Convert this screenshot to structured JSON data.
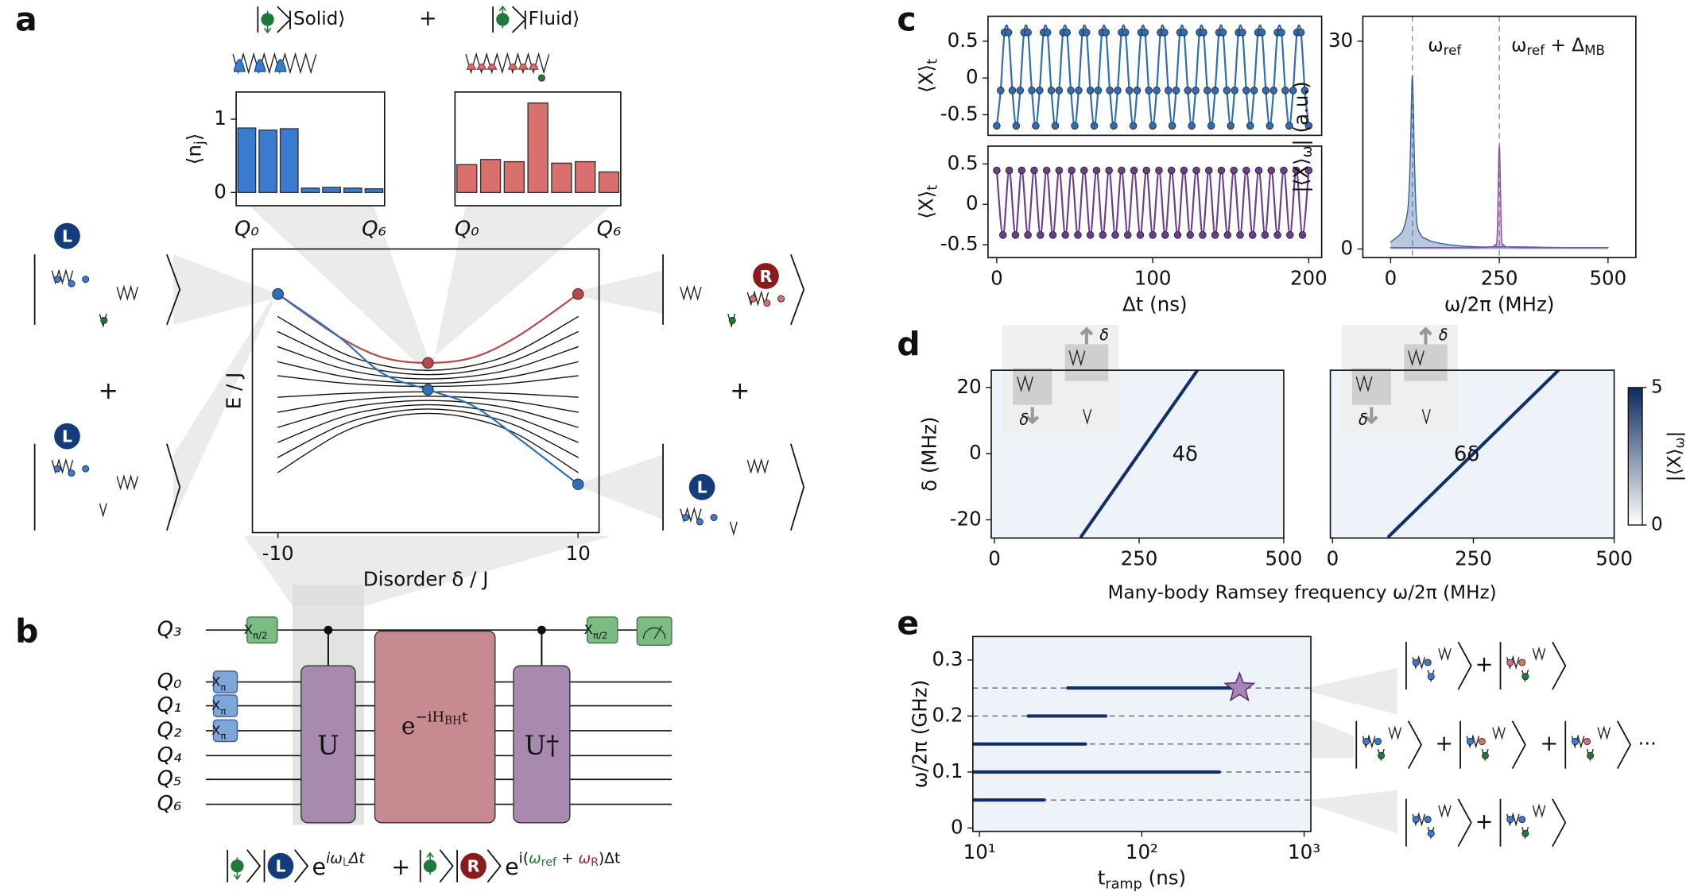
{
  "panels": {
    "a": "a",
    "b": "b",
    "c": "c",
    "d": "d",
    "e": "e"
  },
  "top": {
    "solid": "|Solid⟩",
    "fluid": "|Fluid⟩",
    "plus": "+"
  },
  "kets": {
    "L": "L",
    "R": "R",
    "plus": "+",
    "dots": "···"
  },
  "d_insets": {
    "delta": "δ"
  },
  "d_xlabel": "Many-body Ramsey frequency ω/2π (MHz)",
  "circuit": {
    "qubits": [
      "Q₃",
      "Q₀",
      "Q₁",
      "Q₂",
      "Q₄",
      "Q₅",
      "Q₆"
    ],
    "x_half": [
      "X",
      "π/2"
    ],
    "x_pi": [
      "X",
      "π"
    ],
    "u": "U",
    "evo": [
      "e",
      "−iH",
      "BH",
      "t"
    ],
    "u_dag": "U†",
    "formula": [
      "e",
      "iω",
      "L",
      "Δt",
      "+",
      "e",
      "i(",
      "ω",
      "ref",
      " + ",
      "ω",
      "R",
      ")Δt"
    ]
  },
  "chart_data": [
    {
      "type": "bar",
      "categories": [
        "Q₀",
        null,
        null,
        null,
        null,
        null,
        "Q₆"
      ],
      "values": [
        0.88,
        0.85,
        0.87,
        0.06,
        0.07,
        0.06,
        0.05
      ],
      "color": "#3a7bd0",
      "ylim": [
        -0.18,
        1.37
      ],
      "yticks": [
        0,
        1
      ],
      "ylabel": [
        "⟨n",
        "j",
        "⟩"
      ]
    },
    {
      "type": "bar",
      "categories": [
        "Q₀",
        null,
        null,
        null,
        null,
        null,
        "Q₆"
      ],
      "values": [
        0.38,
        0.45,
        0.42,
        1.22,
        0.4,
        0.42,
        0.28
      ],
      "color": "#d9706e",
      "ylim": [
        -0.18,
        1.37
      ]
    },
    {
      "type": "line",
      "x": [
        -10,
        -6,
        -3,
        0,
        3,
        6,
        10
      ],
      "xlim": [
        -11.7,
        11.4
      ],
      "xticks": [
        -10,
        10
      ],
      "ylim": [
        -1.33,
        1.31
      ],
      "xlabel": "Disorder δ / J",
      "ylabel": "E / J",
      "series": [
        {
          "color": "#111111",
          "values": [
            0.68,
            0.36,
            0.225,
            0.18,
            0.225,
            0.36,
            0.68
          ]
        },
        {
          "color": "#111111",
          "values": [
            0.54,
            0.284,
            0.176,
            0.14,
            0.176,
            0.284,
            0.54
          ]
        },
        {
          "color": "#111111",
          "values": [
            0.4,
            0.208,
            0.127,
            0.1,
            0.127,
            0.208,
            0.4
          ]
        },
        {
          "color": "#111111",
          "values": [
            0.26,
            0.132,
            0.078,
            0.06,
            0.078,
            0.132,
            0.26
          ]
        },
        {
          "color": "#111111",
          "values": [
            0.13,
            0.066,
            0.039,
            0.03,
            0.039,
            0.066,
            0.13
          ]
        },
        {
          "color": "#111111",
          "values": [
            -0.07,
            -0.038,
            -0.025,
            -0.02,
            -0.025,
            -0.038,
            -0.07
          ]
        },
        {
          "color": "#111111",
          "values": [
            -0.21,
            -0.114,
            -0.074,
            -0.06,
            -0.074,
            -0.114,
            -0.21
          ]
        },
        {
          "color": "#111111",
          "values": [
            -0.35,
            -0.19,
            -0.123,
            -0.1,
            -0.123,
            -0.19,
            -0.35
          ]
        },
        {
          "color": "#111111",
          "values": [
            -0.49,
            -0.266,
            -0.172,
            -0.14,
            -0.172,
            -0.266,
            -0.49
          ]
        },
        {
          "color": "#111111",
          "values": [
            -0.63,
            -0.342,
            -0.221,
            -0.18,
            -0.221,
            -0.342,
            -0.63
          ]
        },
        {
          "color": "#111111",
          "values": [
            -0.77,
            -0.418,
            -0.27,
            -0.22,
            -0.27,
            -0.418,
            -0.77
          ]
        },
        {
          "color": "#b54a4a",
          "markers": true,
          "values": [
            0.89,
            0.5,
            0.3,
            0.25,
            0.3,
            0.5,
            0.89
          ]
        },
        {
          "color": "#2f6fb5",
          "markers": true,
          "values": [
            0.89,
            0.5,
            0.15,
            0,
            -0.15,
            -0.45,
            -0.88
          ]
        }
      ]
    },
    {
      "type": "line",
      "x": [
        0,
        2.5,
        5,
        7.5,
        10,
        12.5,
        15,
        17.5,
        20,
        22.5,
        25,
        27.5,
        30,
        32.5,
        35,
        37.5,
        40,
        42.5,
        45,
        47.5,
        50,
        52.5,
        55,
        57.5,
        60,
        62.5,
        65,
        67.5,
        70,
        72.5,
        75,
        77.5,
        80,
        82.5,
        85,
        87.5,
        90,
        92.5,
        95,
        97.5,
        100,
        102.5,
        105,
        107.5,
        110,
        112.5,
        115,
        117.5,
        120,
        122.5,
        125,
        127.5,
        130,
        132.5,
        135,
        137.5,
        140,
        142.5,
        145,
        147.5,
        150,
        152.5,
        155,
        157.5,
        160,
        162.5,
        165,
        167.5,
        170,
        172.5,
        175,
        177.5,
        180,
        182.5,
        185,
        187.5,
        190,
        192.5,
        195,
        197.5,
        200
      ],
      "xlim": [
        -5.6,
        208.3
      ],
      "ylim": [
        -0.78,
        0.84
      ],
      "yticks": [
        -0.5,
        0,
        0.5
      ],
      "ylabel": [
        "⟨X⟩",
        "t"
      ],
      "series": [
        {
          "color": "#2e6db4",
          "markers": true,
          "values": [
            -0.65,
            -0.17,
            0.62,
            0.62,
            -0.17,
            -0.65,
            -0.17,
            0.62,
            0.62,
            -0.17,
            -0.65,
            -0.17,
            0.62,
            0.62,
            -0.17,
            -0.65,
            -0.17,
            0.62,
            0.62,
            -0.17,
            -0.65,
            -0.17,
            0.62,
            0.62,
            -0.17,
            -0.65,
            -0.17,
            0.62,
            0.62,
            -0.17,
            -0.65,
            -0.17,
            0.62,
            0.62,
            -0.17,
            -0.65,
            -0.17,
            0.62,
            0.62,
            -0.17,
            -0.65,
            -0.17,
            0.62,
            0.62,
            -0.17,
            -0.65,
            -0.17,
            0.62,
            0.62,
            -0.17,
            -0.65,
            -0.17,
            0.62,
            0.62,
            -0.17,
            -0.65,
            -0.17,
            0.62,
            0.62,
            -0.17,
            -0.65,
            -0.17,
            0.62,
            0.62,
            -0.17,
            -0.65,
            -0.17,
            0.62,
            0.62,
            -0.17,
            -0.65,
            -0.17,
            0.62,
            0.62,
            -0.17,
            -0.65,
            -0.17,
            0.62,
            0.62,
            -0.17,
            -0.65
          ]
        }
      ]
    },
    {
      "type": "line",
      "x": [
        0,
        4,
        8,
        12,
        16,
        20,
        24,
        28,
        32,
        36,
        40,
        44,
        48,
        52,
        56,
        60,
        64,
        68,
        72,
        76,
        80,
        84,
        88,
        92,
        96,
        100,
        104,
        108,
        112,
        116,
        120,
        124,
        128,
        132,
        136,
        140,
        144,
        148,
        152,
        156,
        160,
        164,
        168,
        172,
        176,
        180,
        184,
        188,
        192,
        196,
        200
      ],
      "xlim": [
        -5.6,
        208.3
      ],
      "xticks": [
        0,
        100,
        200
      ],
      "ylim": [
        -0.66,
        0.72
      ],
      "yticks": [
        -0.5,
        0,
        0.5
      ],
      "ylabel": [
        "⟨X⟩",
        "t"
      ],
      "xlabel": "Δt (ns)",
      "series": [
        {
          "color": "#6a3d8f",
          "markers": true,
          "values": [
            0.42,
            -0.38,
            0.42,
            -0.38,
            0.42,
            -0.38,
            0.42,
            -0.38,
            0.42,
            -0.38,
            0.42,
            -0.38,
            0.42,
            -0.38,
            0.42,
            -0.38,
            0.42,
            -0.38,
            0.42,
            -0.38,
            0.42,
            -0.38,
            0.42,
            -0.38,
            0.42,
            -0.38,
            0.42,
            -0.38,
            0.42,
            -0.38,
            0.42,
            -0.38,
            0.42,
            -0.38,
            0.42,
            -0.38,
            0.42,
            -0.38,
            0.42,
            -0.38,
            0.42,
            -0.38,
            0.42,
            -0.38,
            0.42,
            -0.38,
            0.42,
            -0.38,
            0.42,
            -0.38,
            0.42
          ]
        }
      ]
    },
    {
      "type": "line",
      "x": [
        0,
        10,
        20,
        30,
        40,
        45,
        50,
        55,
        60,
        70,
        80,
        100,
        150,
        200,
        230,
        240,
        245,
        250,
        255,
        260,
        270,
        300,
        400,
        500
      ],
      "xlim": [
        -64,
        564
      ],
      "xticks": [
        0,
        250,
        500
      ],
      "ylim": [
        -1.25,
        33.6
      ],
      "yticks": [
        0,
        30
      ],
      "xlabel": "ω/2π (MHz)",
      "ylabel": [
        "|⟨X⟩",
        "ω",
        "| (a.u.)"
      ],
      "vlines": [
        50,
        250
      ],
      "annotations": [
        [
          "ω",
          "ref"
        ],
        [
          "ω",
          "ref",
          " + Δ",
          "MB"
        ]
      ],
      "series": [
        {
          "color": "#2e5fa0",
          "area": true,
          "values": [
            1,
            1.5,
            2,
            3,
            6,
            13,
            25,
            12,
            4,
            2,
            1.5,
            1,
            0.5,
            0.3,
            0.3,
            0.3,
            0.3,
            0.3,
            0.3,
            0.3,
            0.3,
            0.3,
            0.2,
            0.2
          ]
        },
        {
          "color": "#8a4c9e",
          "area": true,
          "values": [
            0.2,
            0.2,
            0.2,
            0.2,
            0.2,
            0.2,
            0.2,
            0.2,
            0.2,
            0.2,
            0.2,
            0.2,
            0.2,
            0.2,
            0.3,
            0.6,
            2,
            15,
            2,
            0.6,
            0.3,
            0.2,
            0.2,
            0.2
          ]
        }
      ]
    },
    {
      "type": "heatmap",
      "xlim": [
        -5.6,
        500
      ],
      "xticks": [
        0,
        250,
        500
      ],
      "ylim": [
        -25.5,
        25.2
      ],
      "yticks": [
        -20,
        0,
        20
      ],
      "ylabel": "δ (MHz)",
      "annotation": "4δ",
      "series": [
        {
          "color": "#10306a",
          "x": [
            150,
            350
          ],
          "values": [
            -25,
            25
          ]
        }
      ]
    },
    {
      "type": "heatmap",
      "xlim": [
        -4,
        500
      ],
      "xticks": [
        0,
        250,
        500
      ],
      "ylim": [
        -25.5,
        25.2
      ],
      "annotation": "6δ",
      "clim": [
        0,
        5
      ],
      "cticks": [
        0,
        5
      ],
      "clabel": [
        "|⟨X⟩",
        "ω",
        "|"
      ],
      "series": [
        {
          "color": "#10306a",
          "x": [
            100,
            400
          ],
          "values": [
            -25,
            25
          ]
        }
      ]
    },
    {
      "type": "heatmap",
      "xlog": true,
      "xlim": [
        9.1,
        1100
      ],
      "xticks": [
        {
          "value": 10,
          "label": "10¹"
        },
        {
          "value": 100,
          "label": "10²"
        },
        {
          "value": 1000,
          "label": "10³"
        }
      ],
      "ylim": [
        -0.006,
        0.342
      ],
      "yticks": [
        0,
        0.1,
        0.2,
        0.3
      ],
      "ylabel": "ω/2π (GHz)",
      "xlabel": [
        "t",
        "ramp",
        " (ns)"
      ],
      "hlines": [
        0.05,
        0.1,
        0.15,
        0.2,
        0.25
      ],
      "star": {
        "x": 400,
        "y": 0.25
      },
      "series": [
        {
          "color": "#10306a",
          "x": [
            35,
            400
          ],
          "values": [
            0.25,
            0.25
          ]
        },
        {
          "color": "#10306a",
          "x": [
            20,
            60
          ],
          "values": [
            0.2,
            0.2
          ]
        },
        {
          "color": "#10306a",
          "x": [
            9.1,
            45
          ],
          "values": [
            0.15,
            0.15
          ]
        },
        {
          "color": "#10306a",
          "x": [
            9.1,
            300
          ],
          "values": [
            0.1,
            0.1
          ]
        },
        {
          "color": "#10306a",
          "x": [
            9.1,
            25
          ],
          "values": [
            0.05,
            0.05
          ]
        }
      ]
    }
  ]
}
